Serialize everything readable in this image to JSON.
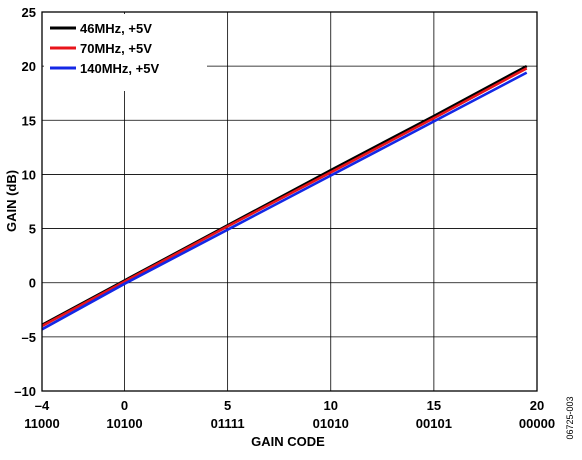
{
  "figure_id": "06725-003",
  "chart_data": {
    "type": "line",
    "xlabel": "GAIN CODE",
    "ylabel": "GAIN (dB)",
    "xlim": [
      -4,
      20
    ],
    "ylim": [
      -10,
      25
    ],
    "x_ticks": [
      {
        "value": -4,
        "label": "–4",
        "code": "11000"
      },
      {
        "value": 0,
        "label": "0",
        "code": "10100"
      },
      {
        "value": 5,
        "label": "5",
        "code": "01111"
      },
      {
        "value": 10,
        "label": "10",
        "code": "01010"
      },
      {
        "value": 15,
        "label": "15",
        "code": "00101"
      },
      {
        "value": 20,
        "label": "20",
        "code": "00000"
      }
    ],
    "y_ticks": [
      {
        "value": 25,
        "label": "25"
      },
      {
        "value": 20,
        "label": "20"
      },
      {
        "value": 15,
        "label": "15"
      },
      {
        "value": 10,
        "label": "10"
      },
      {
        "value": 5,
        "label": "5"
      },
      {
        "value": 0,
        "label": "0"
      },
      {
        "value": -5,
        "label": "–5"
      },
      {
        "value": -10,
        "label": "–10"
      }
    ],
    "grid": true,
    "legend_position": "top-left",
    "series": [
      {
        "name": "46MHz, +5V",
        "color": "#000000",
        "x": [
          -4,
          0,
          5,
          10,
          15,
          19.5
        ],
        "y": [
          -3.9,
          0.2,
          5.3,
          10.4,
          15.4,
          20.0
        ]
      },
      {
        "name": "70MHz, +5V",
        "color": "#e8141b",
        "x": [
          -4,
          0,
          5,
          10,
          15,
          19.5
        ],
        "y": [
          -4.0,
          0.1,
          5.2,
          10.2,
          15.2,
          19.8
        ]
      },
      {
        "name": "140MHz, +5V",
        "color": "#1428e6",
        "x": [
          -4,
          0,
          5,
          10,
          15,
          19.5
        ],
        "y": [
          -4.3,
          -0.1,
          4.9,
          9.9,
          14.9,
          19.4
        ]
      }
    ]
  }
}
